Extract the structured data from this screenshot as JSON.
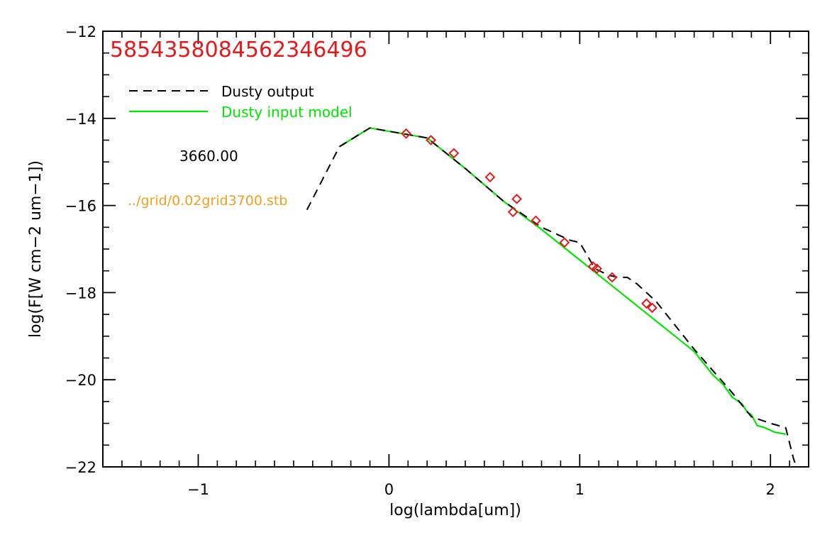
{
  "chart_data": {
    "type": "line",
    "title": "5854358084562346496",
    "title_color": "#e31a1c",
    "xlabel": "log(lambda[um])",
    "ylabel": "log(F[W cm−2 um−1])",
    "xlim": [
      -1.5,
      2.2
    ],
    "ylim": [
      -22,
      -12
    ],
    "x_major_ticks": [
      -1,
      0,
      1,
      2
    ],
    "x_tick_labels": [
      "−1",
      "0",
      "1",
      "2"
    ],
    "x_minor_step": 0.1,
    "y_major_ticks": [
      -22,
      -20,
      -18,
      -16,
      -14,
      -12
    ],
    "y_tick_labels": [
      "−22",
      "−20",
      "−18",
      "−16",
      "−14",
      "−12"
    ],
    "y_minor_step": 0.5,
    "legend": {
      "placement": "top-left",
      "entries": [
        {
          "label": "Dusty output",
          "color": "#000000",
          "style": "dashed"
        },
        {
          "label": "Dusty input model",
          "color": "#00e600",
          "style": "solid"
        }
      ]
    },
    "annotations": [
      {
        "text": "3660.00",
        "color": "#000000"
      },
      {
        "text": "../grid/0.02grid3700.stb",
        "color": "#f0a020"
      }
    ],
    "series": [
      {
        "name": "Dusty input model",
        "color": "#00e600",
        "style": "solid",
        "x": [
          -0.26,
          -0.1,
          0.2,
          0.4,
          0.6,
          0.8,
          1.0,
          1.2,
          1.4,
          1.6,
          1.7,
          1.75,
          1.8,
          1.85,
          1.88,
          1.9,
          1.93,
          1.97,
          2.02,
          2.08
        ],
        "y": [
          -14.65,
          -14.22,
          -14.45,
          -15.15,
          -15.9,
          -16.55,
          -17.25,
          -17.95,
          -18.65,
          -19.35,
          -19.9,
          -20.1,
          -20.4,
          -20.55,
          -20.75,
          -20.8,
          -21.05,
          -21.1,
          -21.2,
          -21.25
        ]
      },
      {
        "name": "Dusty output",
        "color": "#000000",
        "style": "dashed",
        "x": [
          -0.43,
          -0.26,
          -0.1,
          0.2,
          0.4,
          0.6,
          0.8,
          0.95,
          1.0,
          1.08,
          1.15,
          1.2,
          1.25,
          1.3,
          1.4,
          1.6,
          1.8,
          1.9,
          2.0,
          2.08,
          2.12,
          2.15,
          2.18
        ],
        "y": [
          -16.1,
          -14.65,
          -14.22,
          -14.45,
          -15.15,
          -15.9,
          -16.5,
          -16.8,
          -16.85,
          -17.45,
          -17.6,
          -17.65,
          -17.65,
          -17.8,
          -18.2,
          -19.3,
          -20.3,
          -20.85,
          -21.0,
          -21.1,
          -21.8,
          -22.2,
          -22.3
        ]
      },
      {
        "name": "",
        "type": "scatter",
        "marker": "diamond",
        "color": "#e31a1c",
        "x": [
          0.09,
          0.22,
          0.34,
          0.53,
          0.67,
          0.65,
          0.77,
          0.92,
          1.07,
          1.09,
          1.17,
          1.35,
          1.38
        ],
        "y": [
          -14.35,
          -14.5,
          -14.8,
          -15.35,
          -15.85,
          -16.15,
          -16.35,
          -16.85,
          -17.4,
          -17.45,
          -17.65,
          -18.25,
          -18.35
        ]
      }
    ]
  }
}
